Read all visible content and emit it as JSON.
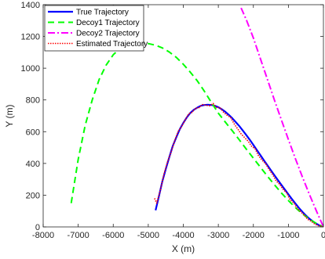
{
  "chart_data": {
    "type": "line",
    "title": "",
    "xlabel": "X (m)",
    "ylabel": "Y (m)",
    "xlim": [
      -8000,
      0
    ],
    "ylim": [
      0,
      1400
    ],
    "xticks": [
      -8000,
      -7000,
      -6000,
      -5000,
      -4000,
      -3000,
      -2000,
      -1000,
      0
    ],
    "yticks": [
      0,
      200,
      400,
      600,
      800,
      1000,
      1200,
      1400
    ],
    "xtick_labels": [
      "-8000",
      "-7000",
      "-6000",
      "-5000",
      "-4000",
      "-3000",
      "-2000",
      "-1000",
      "0"
    ],
    "ytick_labels": [
      "0",
      "200",
      "400",
      "600",
      "800",
      "1000",
      "1200",
      "1400"
    ],
    "grid": false,
    "legend_position": "top-left",
    "series": [
      {
        "name": "True Trajectory",
        "color": "#0000ff",
        "style": "solid",
        "x": [
          -4790,
          -4700,
          -4600,
          -4500,
          -4400,
          -4300,
          -4200,
          -4100,
          -4000,
          -3900,
          -3800,
          -3700,
          -3600,
          -3500,
          -3400,
          -3300,
          -3200,
          -3100,
          -3000,
          -2900,
          -2800,
          -2700,
          -2600,
          -2500,
          -2400,
          -2300,
          -2200,
          -2100,
          -2000,
          -1900,
          -1800,
          -1700,
          -1600,
          -1500,
          -1400,
          -1300,
          -1200,
          -1100,
          -1000,
          -900,
          -800,
          -700,
          -600,
          -500,
          -400,
          -300,
          -200,
          -100,
          0
        ],
        "y": [
          105,
          190,
          285,
          365,
          440,
          510,
          565,
          615,
          655,
          690,
          718,
          738,
          752,
          763,
          768,
          770,
          768,
          763,
          754,
          741,
          725,
          706,
          684,
          660,
          635,
          607,
          578,
          548,
          516,
          484,
          452,
          420,
          389,
          357,
          326,
          295,
          265,
          235,
          205,
          176,
          148,
          120,
          95,
          72,
          52,
          35,
          20,
          8,
          0
        ]
      },
      {
        "name": "Decoy1 Trajectory",
        "color": "#00ff00",
        "style": "dashed",
        "x": [
          -7200,
          -7000,
          -6800,
          -6600,
          -6400,
          -6200,
          -6000,
          -5800,
          -5600,
          -5400,
          -5200,
          -5000,
          -4800,
          -4600,
          -4400,
          -4200,
          -4000,
          -3800,
          -3600,
          -3400,
          -3200,
          -3000,
          -2800,
          -2600,
          -2400,
          -2200,
          -2000,
          -1800,
          -1600,
          -1400,
          -1200,
          -1000,
          -800,
          -600,
          -400,
          -200,
          0
        ],
        "y": [
          150,
          425,
          640,
          800,
          930,
          1020,
          1085,
          1125,
          1145,
          1155,
          1158,
          1155,
          1145,
          1128,
          1102,
          1068,
          1025,
          975,
          920,
          855,
          785,
          717,
          660,
          605,
          548,
          490,
          433,
          376,
          320,
          266,
          214,
          166,
          122,
          83,
          49,
          21,
          0
        ]
      },
      {
        "name": "Decoy2 Trajectory",
        "color": "#ff00ff",
        "style": "dashdot",
        "x": [
          -2350,
          -2200,
          -2000,
          -1800,
          -1600,
          -1400,
          -1200,
          -1000,
          -800,
          -600,
          -400,
          -200,
          0
        ],
        "y": [
          1380,
          1305,
          1190,
          1060,
          930,
          800,
          675,
          550,
          430,
          315,
          205,
          100,
          0
        ]
      },
      {
        "name": "Estimated Trajectory",
        "color": "#ff0000",
        "style": "dotted",
        "x": [
          -4820,
          -4760,
          -4650,
          -4550,
          -4450,
          -4350,
          -4250,
          -4150,
          -4050,
          -3950,
          -3850,
          -3750,
          -3650,
          -3550,
          -3450,
          -3350,
          -3250,
          -3150,
          -3050,
          -2950,
          -2850,
          -2750,
          -2650,
          -2550,
          -2450,
          -2350,
          -2250,
          -2150,
          -2050,
          -1950,
          -1850,
          -1750,
          -1650,
          -1550,
          -1450,
          -1350,
          -1250,
          -1150,
          -1050,
          -950,
          -850,
          -750,
          -650,
          -550,
          -450,
          -350,
          -250,
          -150,
          -50,
          0
        ],
        "y": [
          180,
          150,
          235,
          335,
          410,
          470,
          540,
          600,
          632,
          672,
          712,
          722,
          748,
          752,
          771,
          766,
          763,
          778,
          752,
          752,
          722,
          704,
          690,
          650,
          618,
          586,
          563,
          540,
          508,
          492,
          448,
          420,
          398,
          362,
          330,
          290,
          268,
          236,
          215,
          170,
          152,
          118,
          96,
          75,
          48,
          36,
          18,
          8,
          3,
          0
        ]
      }
    ]
  }
}
